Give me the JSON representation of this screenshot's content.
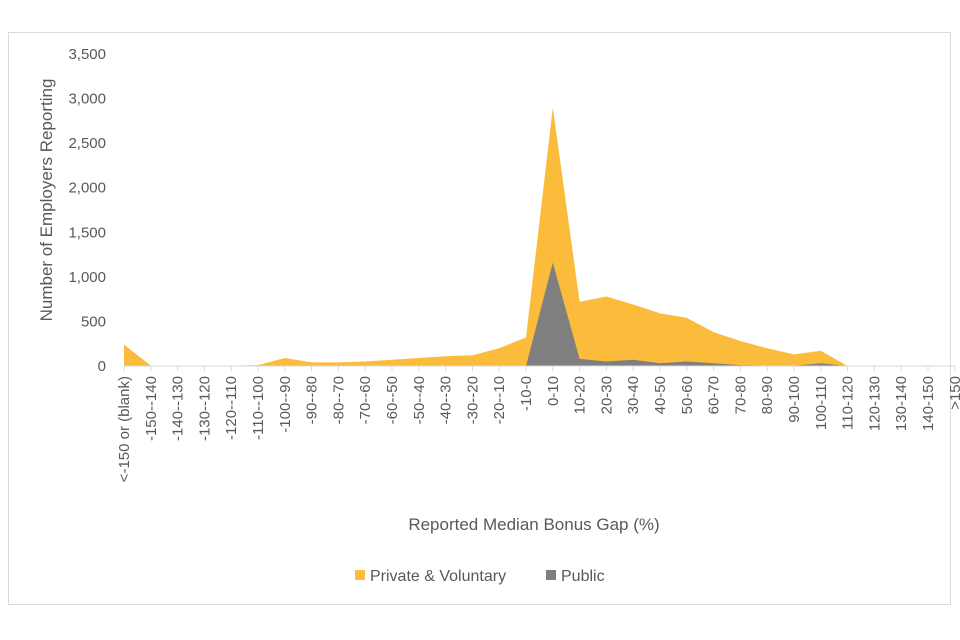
{
  "chart_data": {
    "type": "area",
    "title": "",
    "xlabel": "Reported Median Bonus Gap (%)",
    "ylabel": "Number of Employers Reporting",
    "ylim": [
      0,
      3500
    ],
    "yticks": [
      "0",
      "500",
      "1,000",
      "1,500",
      "2,000",
      "2,500",
      "3,000",
      "3,500"
    ],
    "grid": false,
    "legend_position": "bottom",
    "categories": [
      "<-150 or (blank)",
      "-150--140",
      "-140--130",
      "-130--120",
      "-120--110",
      "-110--100",
      "-100--90",
      "-90--80",
      "-80--70",
      "-70--60",
      "-60--50",
      "-50--40",
      "-40--30",
      "-30--20",
      "-20--10",
      "-10-0",
      "0-10",
      "10-20",
      "20-30",
      "30-40",
      "40-50",
      "50-60",
      "60-70",
      "70-80",
      "80-90",
      "90-100",
      "100-110",
      "110-120",
      "120-130",
      "130-140",
      "140-150",
      ">150"
    ],
    "series": [
      {
        "name": "Private & Voluntary",
        "color": "#fbbc3c",
        "values": [
          240,
          5,
          5,
          2,
          5,
          10,
          90,
          40,
          40,
          50,
          70,
          90,
          110,
          120,
          200,
          320,
          2900,
          720,
          780,
          690,
          590,
          540,
          380,
          280,
          200,
          130,
          170,
          0,
          0,
          0,
          0,
          0
        ]
      },
      {
        "name": "Public",
        "color": "#7f7f7f",
        "values": [
          0,
          0,
          0,
          0,
          0,
          0,
          0,
          0,
          0,
          0,
          0,
          0,
          0,
          0,
          0,
          0,
          1160,
          80,
          50,
          70,
          30,
          50,
          30,
          10,
          5,
          5,
          30,
          0,
          0,
          0,
          0,
          0
        ]
      }
    ]
  }
}
